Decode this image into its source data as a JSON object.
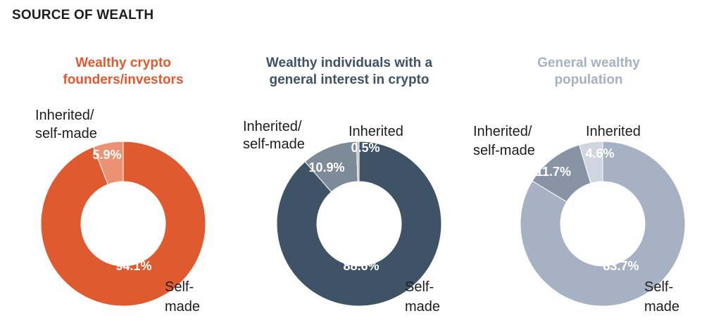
{
  "page": {
    "title": "SOURCE OF WEALTH"
  },
  "chart_data": [
    {
      "type": "pie",
      "title": [
        "Wealthy crypto",
        "founders/investors"
      ],
      "title_color": "#e05a30",
      "slices": [
        {
          "name": "Self-made",
          "label_lines": [
            "Self-",
            "made"
          ],
          "value": 94.1,
          "value_label": "94.1%",
          "color": "#e05a30"
        },
        {
          "name": "Inherited/self-made",
          "label_lines": [
            "Inherited/",
            "self-made"
          ],
          "value": 5.9,
          "value_label": "5.9%",
          "color": "#ec9274"
        }
      ]
    },
    {
      "type": "pie",
      "title": [
        "Wealthy individuals with a",
        "general interest in crypto"
      ],
      "title_color": "#3f5366",
      "slices": [
        {
          "name": "Self-made",
          "label_lines": [
            "Self-",
            "made"
          ],
          "value": 88.6,
          "value_label": "88.6%",
          "color": "#3f5366"
        },
        {
          "name": "Inherited/self-made",
          "label_lines": [
            "Inherited/",
            "self-made"
          ],
          "value": 10.9,
          "value_label": "10.9%",
          "color": "#7d8b98"
        },
        {
          "name": "Inherited",
          "label_lines": [
            "Inherited"
          ],
          "value": 0.5,
          "value_label": "0.5%",
          "color": "#b6bec6"
        }
      ]
    },
    {
      "type": "pie",
      "title": [
        "General wealthy",
        "population"
      ],
      "title_color": "#a6b2c3",
      "slices": [
        {
          "name": "Self-made",
          "label_lines": [
            "Self-",
            "made"
          ],
          "value": 83.7,
          "value_label": "83.7%",
          "color": "#a6b2c3"
        },
        {
          "name": "Inherited/self-made",
          "label_lines": [
            "Inherited/",
            "self-made"
          ],
          "value": 11.7,
          "value_label": "11.7%",
          "color": "#8894a6"
        },
        {
          "name": "Inherited",
          "label_lines": [
            "Inherited"
          ],
          "value": 4.6,
          "value_label": "4.6%",
          "color": "#d0d6df"
        }
      ]
    }
  ]
}
